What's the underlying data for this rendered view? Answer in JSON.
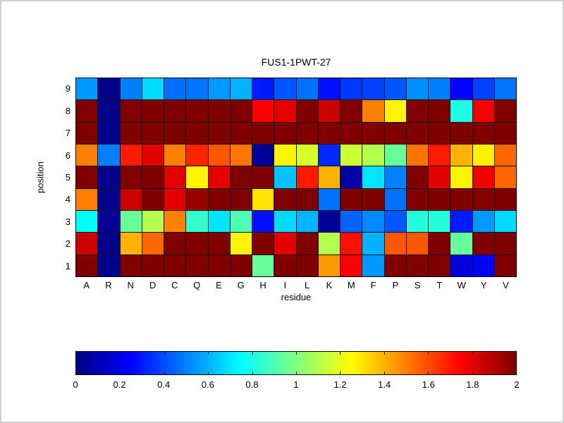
{
  "chart_data": {
    "type": "heatmap",
    "title": "FUS1-1PWT-27",
    "xlabel": "residue",
    "ylabel": "position",
    "x_categories": [
      "A",
      "R",
      "N",
      "D",
      "C",
      "Q",
      "E",
      "G",
      "H",
      "I",
      "L",
      "K",
      "M",
      "F",
      "P",
      "S",
      "T",
      "W",
      "Y",
      "V"
    ],
    "y_categories": [
      "9",
      "8",
      "7",
      "6",
      "5",
      "4",
      "3",
      "2",
      "1"
    ],
    "values": [
      [
        0.55,
        0.03,
        0.5,
        0.68,
        0.47,
        0.48,
        0.55,
        0.6,
        0.3,
        0.42,
        0.47,
        0.28,
        0.36,
        0.38,
        0.42,
        0.53,
        0.5,
        0.25,
        0.38,
        0.48
      ],
      [
        2.0,
        0.03,
        2.0,
        2.0,
        2.0,
        2.0,
        2.0,
        2.0,
        1.75,
        1.8,
        2.0,
        1.85,
        2.0,
        1.5,
        1.27,
        2.0,
        2.0,
        0.8,
        1.77,
        2.0
      ],
      [
        2.0,
        0.03,
        2.0,
        2.0,
        2.0,
        2.0,
        2.0,
        2.0,
        2.0,
        2.0,
        2.0,
        2.0,
        2.0,
        2.0,
        2.0,
        2.0,
        2.0,
        2.0,
        2.0,
        2.0
      ],
      [
        1.5,
        0.5,
        1.7,
        1.8,
        1.5,
        1.68,
        1.58,
        1.52,
        0.05,
        1.27,
        1.17,
        0.33,
        1.15,
        1.1,
        0.95,
        1.52,
        1.7,
        1.4,
        1.28,
        1.55
      ],
      [
        2.0,
        0.03,
        2.0,
        2.0,
        1.8,
        1.27,
        1.8,
        2.0,
        2.0,
        0.63,
        1.7,
        1.4,
        0.08,
        0.7,
        0.5,
        2.0,
        1.8,
        1.27,
        1.78,
        1.55
      ],
      [
        1.5,
        0.03,
        1.85,
        2.0,
        1.8,
        1.95,
        2.0,
        2.0,
        1.3,
        2.0,
        2.0,
        0.47,
        2.0,
        2.0,
        0.47,
        2.0,
        2.0,
        2.0,
        2.0,
        2.0
      ],
      [
        0.75,
        0.05,
        0.95,
        1.1,
        1.5,
        0.85,
        0.7,
        0.9,
        0.28,
        0.68,
        0.6,
        0.05,
        0.45,
        0.52,
        0.42,
        0.82,
        0.82,
        0.3,
        0.55,
        0.68
      ],
      [
        1.85,
        0.03,
        1.4,
        1.55,
        2.0,
        2.0,
        2.0,
        1.27,
        2.0,
        1.8,
        2.0,
        1.1,
        1.72,
        0.6,
        1.58,
        1.58,
        2.0,
        0.95,
        2.0,
        2.0
      ],
      [
        2.0,
        0.03,
        2.0,
        2.0,
        2.0,
        2.0,
        2.0,
        2.0,
        0.95,
        2.0,
        2.0,
        1.45,
        1.75,
        0.55,
        2.0,
        2.0,
        2.0,
        0.18,
        0.25,
        2.0
      ]
    ],
    "colormap": "jet",
    "value_range": [
      0,
      2
    ],
    "colorbar_ticks": [
      "0",
      "0.2",
      "0.4",
      "0.6",
      "0.8",
      "1",
      "1.2",
      "1.4",
      "1.6",
      "1.8",
      "2"
    ],
    "grid": true,
    "legend_position": "horizontal-colorbar-bottom"
  }
}
